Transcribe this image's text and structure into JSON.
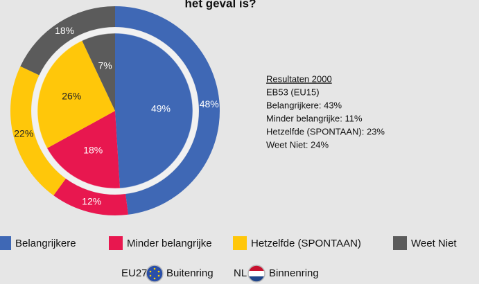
{
  "chart_data": {
    "type": "pie",
    "title": "het geval is?",
    "categories": [
      "Belangrijkere",
      "Minder belangrijke",
      "Hetzelfde (SPONTAAN)",
      "Weet Niet"
    ],
    "colors": [
      "#3f68b5",
      "#e8174f",
      "#ffc70a",
      "#5b5b5b"
    ],
    "series": [
      {
        "name": "EU27",
        "ring": "Buitenring",
        "values": [
          48,
          12,
          22,
          18
        ],
        "value_labels": [
          "48%",
          "12%",
          "22%",
          "18%"
        ]
      },
      {
        "name": "NL",
        "ring": "Binnenring",
        "values": [
          49,
          18,
          26,
          7
        ],
        "value_labels": [
          "49%",
          "18%",
          "26%",
          "7%"
        ]
      }
    ],
    "notes": [
      "Resultaten 2000",
      "EB53 (EU15)",
      "Belangrijkere: 43%",
      "Minder belangrijke: 11%",
      "Hetzelfde (SPONTAAN): 23%",
      "Weet Niet: 24%"
    ]
  }
}
